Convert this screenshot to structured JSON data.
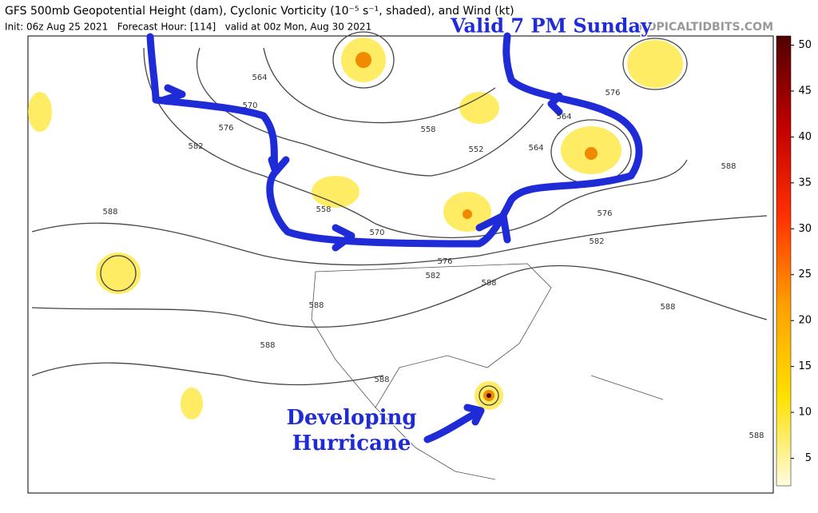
{
  "header": {
    "title": "GFS 500mb Geopotential Height (dam), Cyclonic Vorticity (10⁻⁵ s⁻¹, shaded), and Wind (kt)",
    "init": "Init: 06z Aug 25 2021   Forecast Hour: [114]   valid at 00z Mon, Aug 30 2021",
    "watermark": "TROPICALTIDBITS.COM"
  },
  "annotations": {
    "valid": "Valid 7 PM Sunday",
    "hurricane_1": "Developing",
    "hurricane_2": "Hurricane"
  },
  "contour_labels": [
    "564",
    "570",
    "576",
    "582",
    "588",
    "558",
    "552",
    "564",
    "576",
    "588",
    "570",
    "576",
    "582",
    "588",
    "588",
    "588",
    "588",
    "588",
    "588",
    "582",
    "576",
    "564",
    "558"
  ],
  "colorbar": {
    "range": [
      2,
      51
    ],
    "ticks": [
      5,
      10,
      15,
      20,
      25,
      30,
      35,
      40,
      45,
      50
    ]
  }
}
